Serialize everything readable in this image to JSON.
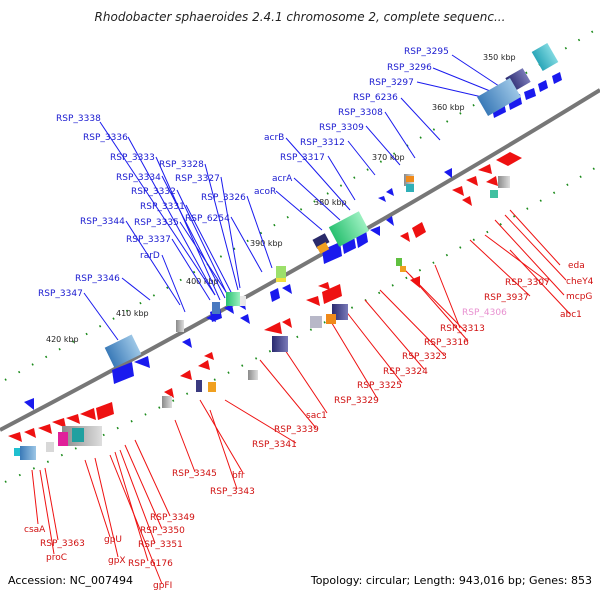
{
  "title": "Rhodobacter sphaeroides 2.4.1 chromosome 2, complete sequenc...",
  "accession": "Accession: NC_007494",
  "summary": "Topology: circular; Length: 943,016 bp; Genes: 853",
  "colors": {
    "backbone": "#777777",
    "forward_gene": "#1a1aee",
    "reverse_gene": "#ee1111",
    "forward_label": "#1a1ad0",
    "reverse_label": "#d01010",
    "pink_label": "#e890d0",
    "ruler_dot": "#1a8a1a"
  },
  "scale": {
    "ticks": [
      "350 kbp",
      "360 kbp",
      "370 kbp",
      "380 kbp",
      "390 kbp",
      "400 kbp",
      "410 kbp",
      "420 kbp"
    ]
  },
  "forward_labels": [
    "RSP_3295",
    "RSP_3296",
    "RSP_3297",
    "RSP_6236",
    "RSP_3308",
    "RSP_3309",
    "RSP_3312",
    "RSP_3317",
    "acrB",
    "acrA",
    "acoR",
    "RSP_3338",
    "RSP_3336",
    "RSP_3333",
    "RSP_3328",
    "RSP_3334",
    "RSP_3327",
    "RSP_3332",
    "RSP_3331",
    "RSP_3326",
    "RSP_3335",
    "RSP_6254",
    "RSP_3344",
    "RSP_3337",
    "rarD",
    "RSP_3346",
    "RSP_3347"
  ],
  "reverse_labels": [
    "eda",
    "cheY4",
    "mcpG",
    "RSP_3307",
    "abc1",
    "RSP_3937",
    "RSP_4306",
    "RSP_3313",
    "RSP_3316",
    "RSP_3323",
    "RSP_3324",
    "RSP_3325",
    "RSP_3329",
    "sac1",
    "RSP_3339",
    "RSP_3341",
    "bfr",
    "RSP_3343",
    "RSP_3345",
    "RSP_3349",
    "RSP_3350",
    "RSP_3351",
    "RSP_6176",
    "gpFI",
    "gpX",
    "gpU",
    "csaA",
    "RSP_3363",
    "proC"
  ]
}
